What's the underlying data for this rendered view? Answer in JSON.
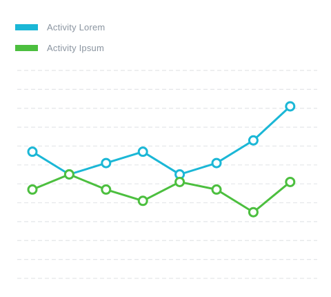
{
  "chart_data": {
    "type": "line",
    "title": "",
    "xlabel": "",
    "ylabel": "",
    "grid": true,
    "legend_position": "top-left",
    "ylim": [
      0,
      11
    ],
    "x": [
      1,
      2,
      3,
      4,
      5,
      6,
      7,
      8
    ],
    "series": [
      {
        "name": "Activity Lorem",
        "color": "#1bb7d6",
        "values": [
          6.7,
          5.5,
          6.1,
          6.7,
          5.5,
          6.1,
          7.3,
          9.1
        ]
      },
      {
        "name": "Activity Ipsum",
        "color": "#4cbf3f",
        "values": [
          4.7,
          5.5,
          4.7,
          4.1,
          5.1,
          4.7,
          3.5,
          5.1
        ]
      }
    ]
  }
}
